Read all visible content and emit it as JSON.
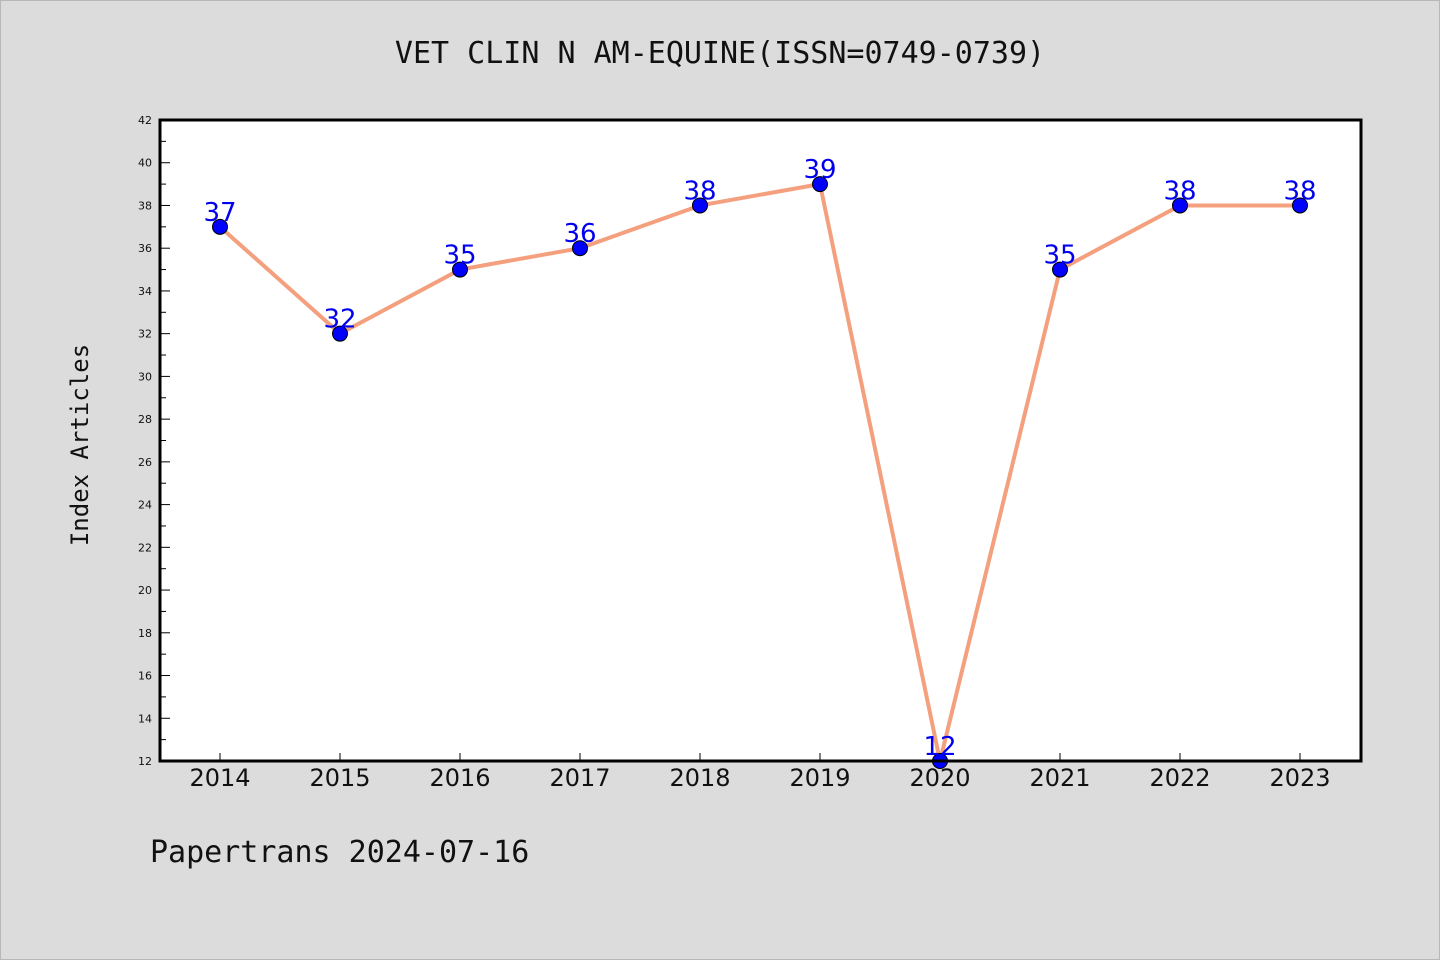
{
  "chart_data": {
    "type": "line",
    "title": "VET CLIN N AM-EQUINE(ISSN=0749-0739)",
    "xlabel": "",
    "ylabel": "Index Articles",
    "categories": [
      "2014",
      "2015",
      "2016",
      "2017",
      "2018",
      "2019",
      "2020",
      "2021",
      "2022",
      "2023"
    ],
    "series": [
      {
        "values": [
          37,
          32,
          35,
          36,
          38,
          39,
          12,
          35,
          38,
          38
        ]
      }
    ],
    "ylim": [
      12,
      42
    ],
    "ytick_step": 2,
    "grid": false,
    "line_color": "#f4a07e",
    "marker_color": "#0000ff",
    "label_color": "#0000ee"
  },
  "footer": "Papertrans 2024-07-16"
}
